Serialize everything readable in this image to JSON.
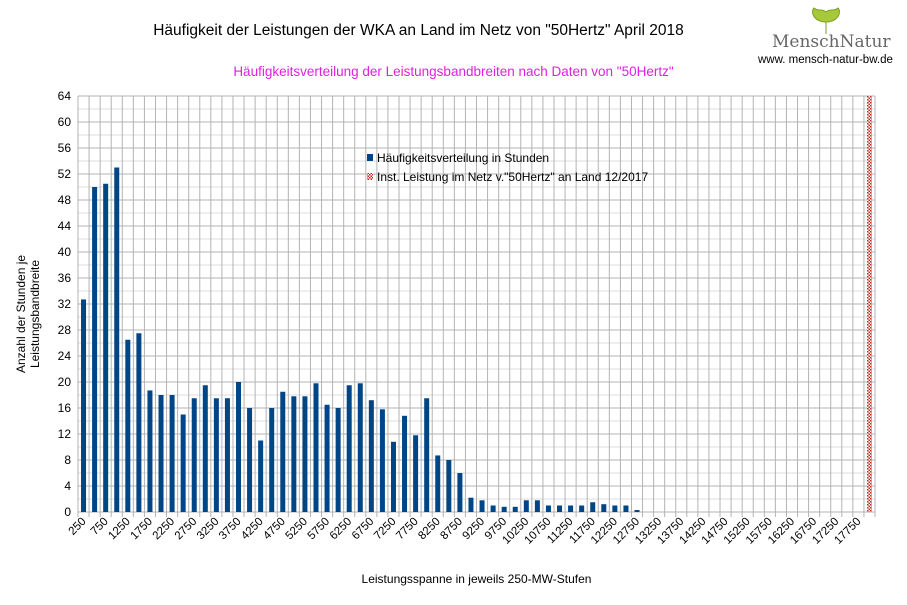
{
  "header": {
    "title": "Häufigkeit der Leistungen der WKA an Land im Netz von \"50Hertz\" April 2018",
    "subtitle": "Häufigkeitsverteilung der Leistungsbandbreiten nach Daten von \"50Hertz\""
  },
  "logo": {
    "name": "MenschNatur",
    "url": "www. mensch-natur-bw.de"
  },
  "colors": {
    "bar": "#004586",
    "hatch": "#c9211e",
    "subtitle": "#e020e0",
    "grid": "#b3b3b3"
  },
  "chart_data": {
    "type": "bar",
    "title": "Häufigkeit der Leistungen der WKA an Land im Netz von \"50Hertz\" April 2018",
    "subtitle": "Häufigkeitsverteilung der Leistungsbandbreiten nach Daten von \"50Hertz\"",
    "xlabel": "Leistungsspanne in jeweils 250-MW-Stufen",
    "ylabel": "Anzahl der Stunden je Leistungsbandbreite",
    "ylim": [
      0,
      64
    ],
    "yticks": [
      0,
      4,
      8,
      12,
      16,
      20,
      24,
      28,
      32,
      36,
      40,
      44,
      48,
      52,
      56,
      60,
      64
    ],
    "xtick_labels": [
      "250",
      "750",
      "1250",
      "1750",
      "2250",
      "2750",
      "3250",
      "3750",
      "4250",
      "4750",
      "5250",
      "5750",
      "6250",
      "6750",
      "7250",
      "7750",
      "8250",
      "8750",
      "9250",
      "9750",
      "10250",
      "10750",
      "11250",
      "11750",
      "12250",
      "12750",
      "13250",
      "13750",
      "14250",
      "14750",
      "15250",
      "15750",
      "16250",
      "16750",
      "17250",
      "17750"
    ],
    "category_start": 250,
    "category_step": 250,
    "category_count": 72,
    "grid": true,
    "legend_placement": "top-center",
    "series": [
      {
        "name": "Häufigkeitsverteilung in Stunden",
        "values": [
          32.7,
          50,
          50.5,
          53,
          26.5,
          27.5,
          18.7,
          18,
          18,
          15,
          17.5,
          19.5,
          17.5,
          17.5,
          20,
          16,
          11,
          16,
          18.5,
          17.8,
          17.8,
          19.8,
          16.5,
          16,
          19.5,
          19.8,
          17.2,
          15.8,
          10.8,
          14.8,
          11.8,
          17.5,
          8.7,
          8,
          6,
          2.2,
          1.8,
          1,
          0.8,
          0.8,
          1.8,
          1.8,
          1,
          1,
          1,
          1,
          1.5,
          1.2,
          1,
          1,
          0.3,
          0,
          0,
          0,
          0,
          0,
          0,
          0,
          0,
          0,
          0,
          0,
          0,
          0,
          0,
          0,
          0,
          0,
          0,
          0,
          0,
          0
        ]
      },
      {
        "name": "Inst. Leistung im Netz v.\"50Hertz\" an Land 12/2017",
        "category": 18000,
        "value": 64
      }
    ]
  }
}
